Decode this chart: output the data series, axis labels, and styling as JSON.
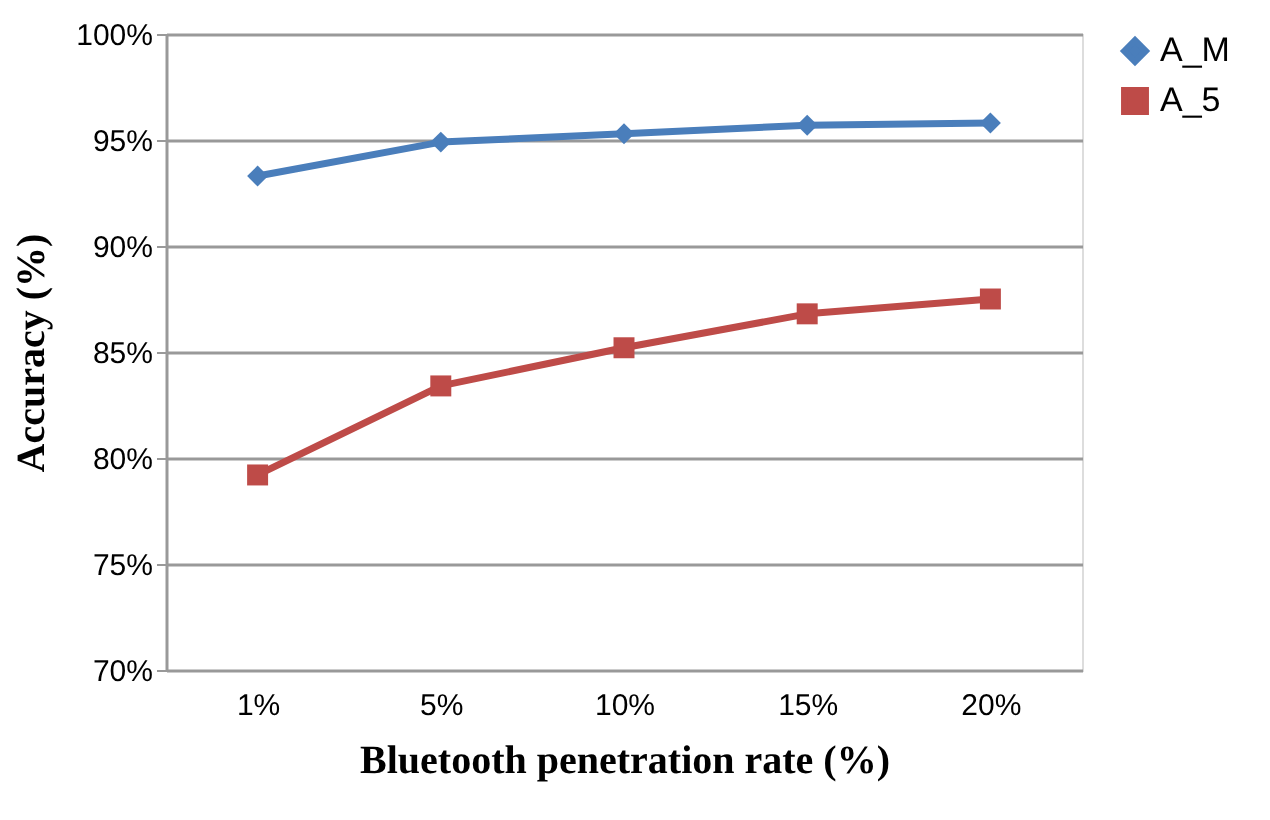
{
  "chart_data": {
    "type": "line",
    "xlabel": "Bluetooth penetration rate (%)",
    "ylabel": "Accuracy (%)",
    "categories": [
      "1%",
      "5%",
      "10%",
      "15%",
      "20%"
    ],
    "series": [
      {
        "name": "A_M",
        "color": "#4a7ebb",
        "marker": "diamond",
        "values": [
          93.3,
          94.9,
          95.3,
          95.7,
          95.8
        ]
      },
      {
        "name": "A_5",
        "color": "#be4b48",
        "marker": "square",
        "values": [
          79.2,
          83.4,
          85.2,
          86.8,
          87.5
        ]
      }
    ],
    "ylim": [
      70,
      100
    ],
    "yticks": [
      {
        "value": 70,
        "label": "70%"
      },
      {
        "value": 75,
        "label": "75%"
      },
      {
        "value": 80,
        "label": "80%"
      },
      {
        "value": 85,
        "label": "85%"
      },
      {
        "value": 90,
        "label": "90%"
      },
      {
        "value": 95,
        "label": "95%"
      },
      {
        "value": 100,
        "label": "100%"
      }
    ],
    "grid": "y",
    "legend": "right",
    "line_style": "solid"
  }
}
